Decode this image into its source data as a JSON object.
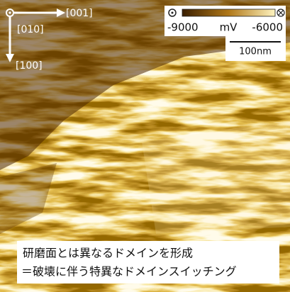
{
  "orientation": {
    "x_axis": "[001]",
    "origin": "[010]",
    "y_axis": "[100]"
  },
  "colorbar": {
    "min": -9000,
    "unit": "mV",
    "max": -6000
  },
  "scale_bar": "100nm",
  "caption": [
    "研磨面とは異なるドメインを形成",
    "＝破壊に伴う特異なドメインスイッチング"
  ]
}
